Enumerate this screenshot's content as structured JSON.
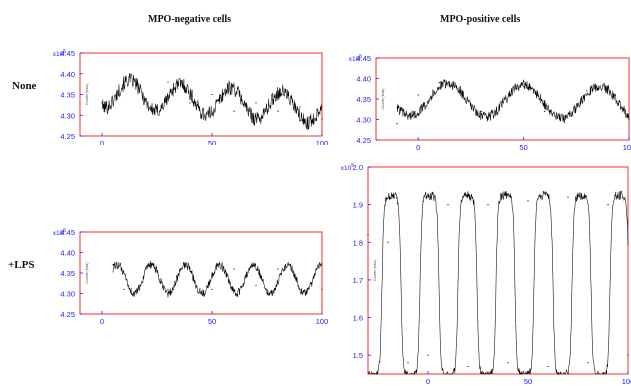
{
  "headers": {
    "left": "MPO-negative cells",
    "right": "MPO-positive cells",
    "row_none": "None",
    "row_lps": "+LPS"
  },
  "colors": {
    "frame": "#ff2a2a",
    "tick": "#1a1aff",
    "trace": "#000000"
  },
  "chart_data": [
    {
      "type": "line",
      "panel": "MPO-negative, None",
      "y_multiplier": "x10^5",
      "ylim": [
        4.25,
        4.45
      ],
      "yticks": [
        4.25,
        4.3,
        4.35,
        4.4,
        4.45
      ],
      "xlim": [
        -10,
        100
      ],
      "xticks": [
        0,
        50,
        100
      ],
      "ylabel": "Counts (total)",
      "series": [
        {
          "start": 0,
          "end": 100,
          "baseline": 4.335,
          "trend": -0.04,
          "amplitude": 0.035,
          "period": 23,
          "phase": 7,
          "noise": 0.018,
          "x": [
            0,
            10,
            20,
            30,
            40,
            50,
            60,
            70,
            80,
            90,
            100
          ],
          "y": [
            4.33,
            4.38,
            4.34,
            4.38,
            4.33,
            4.35,
            4.31,
            4.33,
            4.31,
            4.32,
            4.29
          ]
        }
      ]
    },
    {
      "type": "line",
      "panel": "MPO-positive, None",
      "y_multiplier": "x10^5",
      "ylim": [
        4.25,
        4.45
      ],
      "yticks": [
        4.25,
        4.3,
        4.35,
        4.4,
        4.45
      ],
      "xlim": [
        -20,
        100
      ],
      "xticks": [
        0,
        50,
        100
      ],
      "ylabel": "Counts (total)",
      "series": [
        {
          "start": -10,
          "end": 100,
          "baseline": 4.345,
          "trend": -0.01,
          "amplitude": 0.04,
          "period": 36,
          "phase": 5,
          "noise": 0.012,
          "x": [
            -10,
            0,
            10,
            20,
            30,
            40,
            50,
            60,
            70,
            80,
            90,
            100
          ],
          "y": [
            4.29,
            4.36,
            4.39,
            4.38,
            4.32,
            4.35,
            4.38,
            4.32,
            4.31,
            4.37,
            4.38,
            4.3
          ]
        }
      ]
    },
    {
      "type": "line",
      "panel": "MPO-negative, +LPS",
      "y_multiplier": "x10^5",
      "ylim": [
        4.25,
        4.45
      ],
      "yticks": [
        4.25,
        4.3,
        4.35,
        4.4,
        4.45
      ],
      "xlim": [
        -10,
        100
      ],
      "xticks": [
        0,
        50,
        100
      ],
      "ylabel": "Counts (total)",
      "series": [
        {
          "start": 5,
          "end": 100,
          "baseline": 4.335,
          "trend": 0,
          "amplitude": 0.035,
          "period": 15.5,
          "phase": 3,
          "noise": 0.01,
          "x": [
            5,
            10,
            20,
            30,
            40,
            50,
            60,
            70,
            80,
            90,
            100
          ],
          "y": [
            4.37,
            4.31,
            4.36,
            4.31,
            4.36,
            4.31,
            4.36,
            4.32,
            4.36,
            4.31,
            4.31
          ]
        }
      ]
    },
    {
      "type": "line",
      "panel": "MPO-positive, +LPS",
      "y_multiplier": "x10^5",
      "ylim": [
        1.45,
        2.0
      ],
      "yticks": [
        1.5,
        1.6,
        1.7,
        1.8,
        1.9,
        2.0
      ],
      "xlim": [
        -30,
        100
      ],
      "xticks": [
        0,
        50,
        100
      ],
      "ylabel": "Counts (total)",
      "series": [
        {
          "start": -30,
          "end": 100,
          "baseline": 1.685,
          "trend": 0,
          "amplitude": 0.24,
          "period": 19,
          "phase": -4,
          "noise": 0.012,
          "square": true,
          "x": [
            -30,
            -20,
            -10,
            0,
            10,
            20,
            30,
            40,
            50,
            60,
            70,
            80,
            90,
            100
          ],
          "y": [
            1.82,
            1.8,
            1.48,
            1.5,
            1.9,
            1.47,
            1.9,
            1.48,
            1.91,
            1.47,
            1.92,
            1.48,
            1.9,
            1.5
          ]
        }
      ]
    }
  ]
}
